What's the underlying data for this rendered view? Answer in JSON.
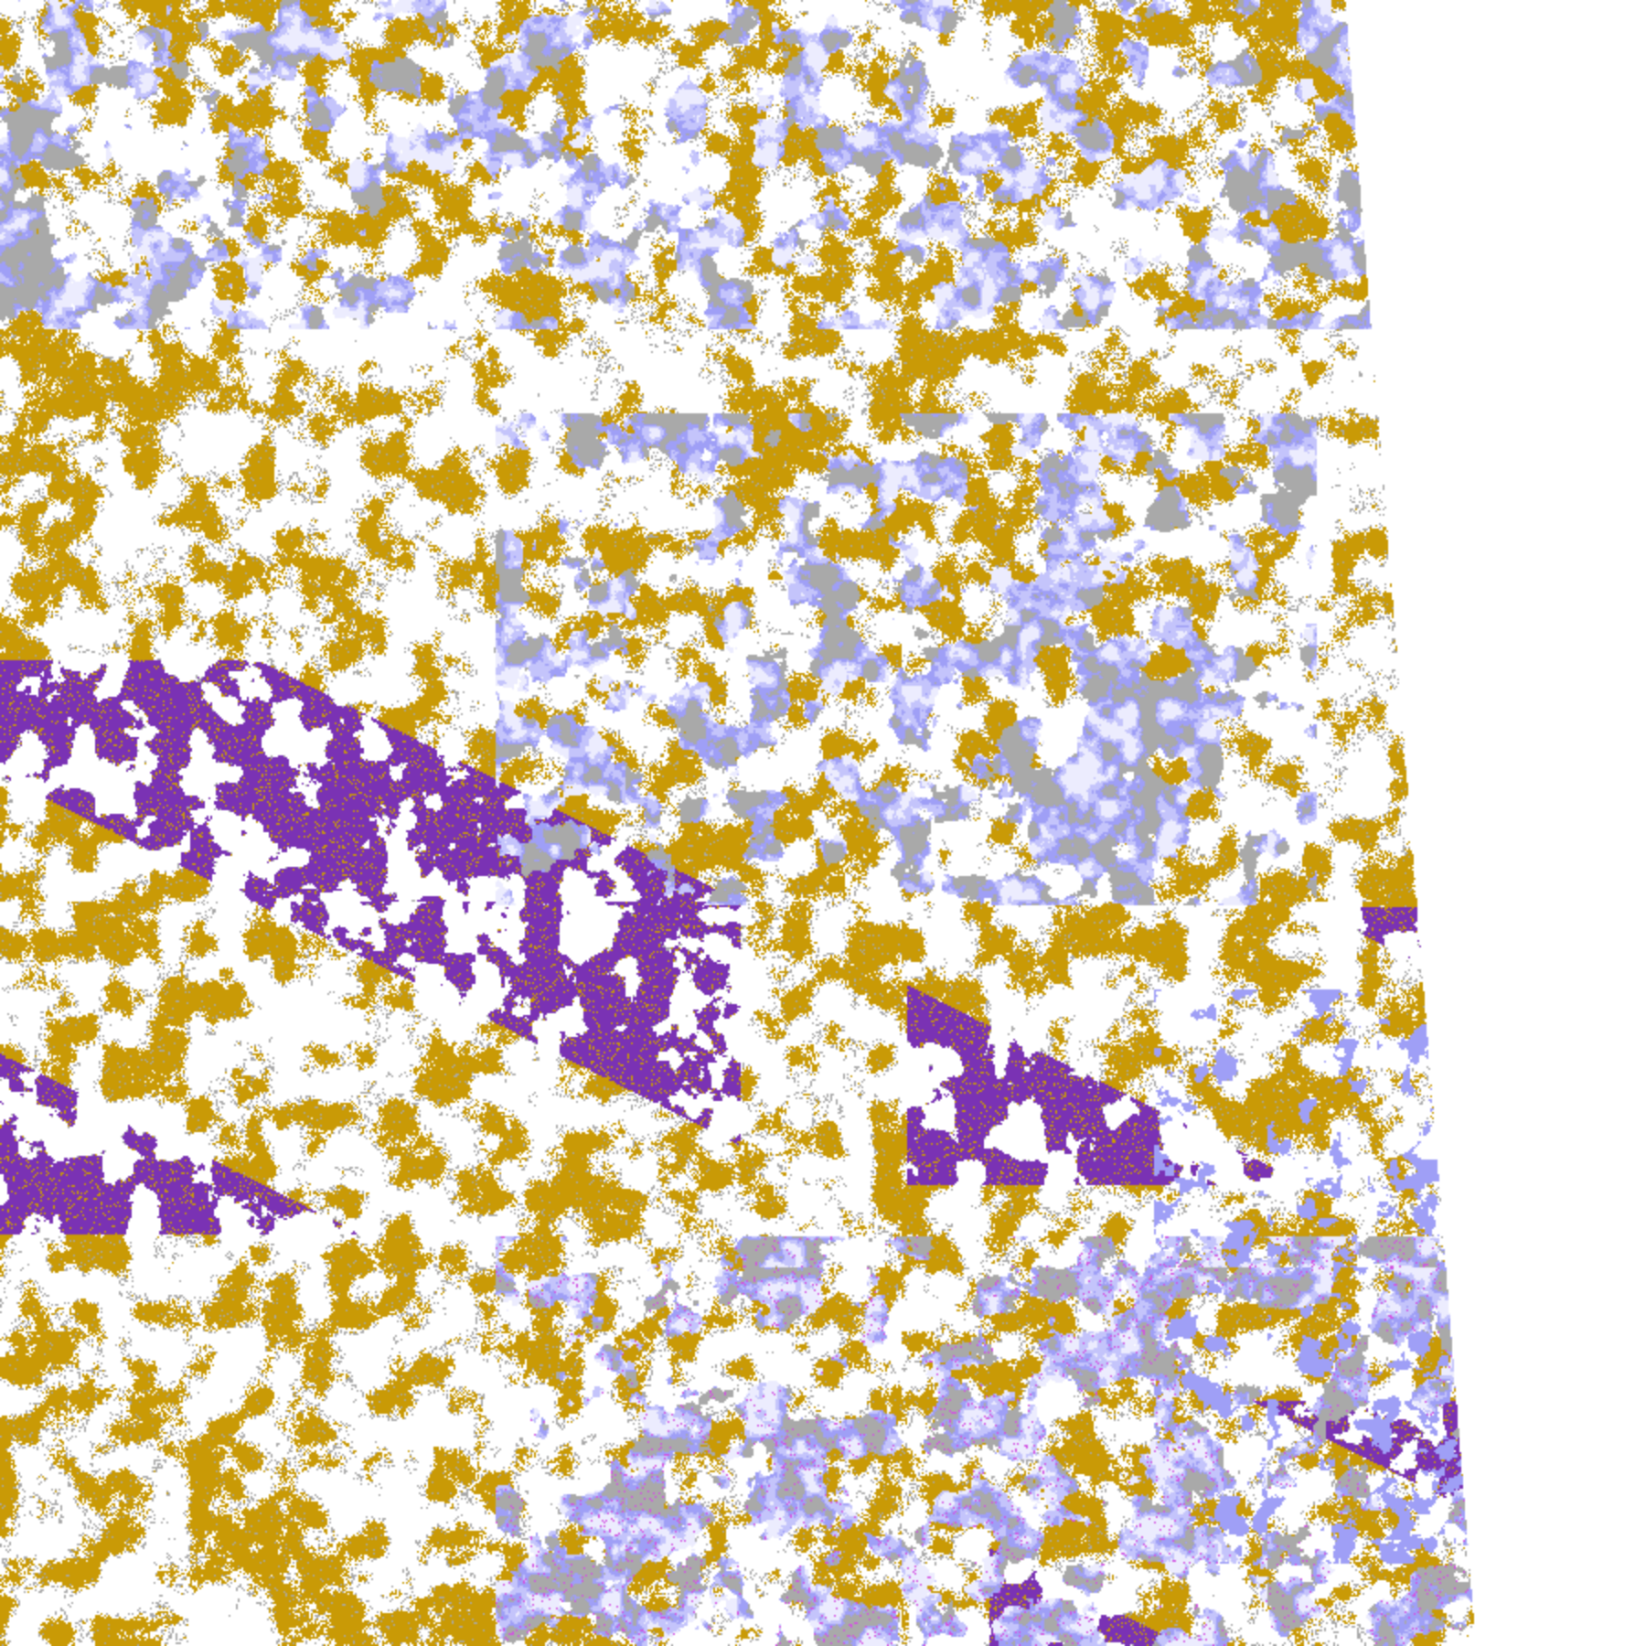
{
  "map": {
    "palette": {
      "clear": "#ffffff",
      "gold": "#c99a06",
      "purple": "#7a32b4",
      "magenta": "#d352e2",
      "lavender": "#ececfe",
      "light_blue": "#c4c4fb",
      "periwinkle": "#9f9ff6",
      "gray": "#a9a9a9"
    }
  }
}
